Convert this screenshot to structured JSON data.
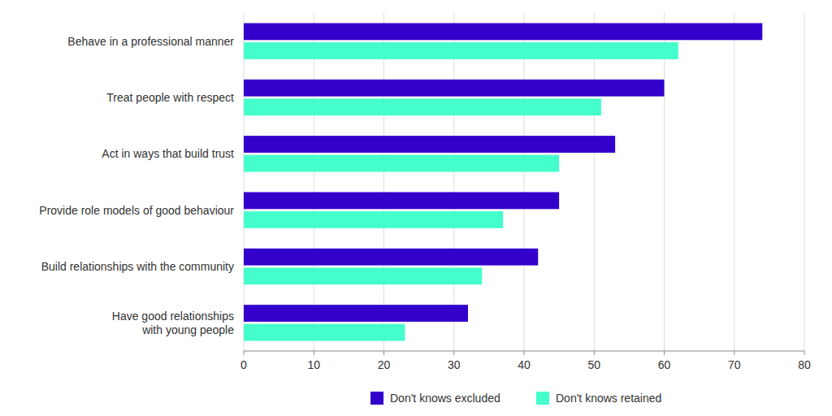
{
  "chart_data": {
    "type": "bar",
    "orientation": "horizontal",
    "categories": [
      "Behave in a professional manner",
      "Treat people with respect",
      "Act in ways that build trust",
      "Provide role models of good behaviour",
      "Build relationships with the community",
      "Have good relationships\nwith young people"
    ],
    "series": [
      {
        "name": "Don't knows excluded",
        "color": "#3300cc",
        "values": [
          74,
          60,
          53,
          45,
          42,
          32
        ]
      },
      {
        "name": "Don't knows retained",
        "color": "#44ffcc",
        "values": [
          62,
          51,
          45,
          37,
          34,
          23
        ]
      }
    ],
    "xlim": [
      0,
      80
    ],
    "xticks": [
      0,
      10,
      20,
      30,
      40,
      50,
      60,
      70,
      80
    ],
    "grid": true,
    "legend": "bottom"
  }
}
